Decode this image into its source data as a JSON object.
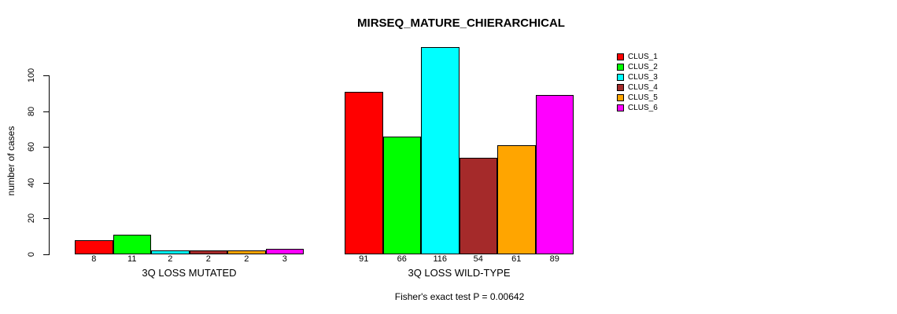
{
  "chart": {
    "title": "MIRSEQ_MATURE_CHIERARCHICAL",
    "ylabel": "number of cases",
    "caption": "Fisher's exact test P = 0.00642"
  },
  "colors": {
    "background": "#FFFFFF",
    "axis": "#000000",
    "bar_border": "#000000",
    "text": "#000000"
  },
  "chart_data": {
    "type": "bar",
    "title": "MIRSEQ_MATURE_CHIERARCHICAL",
    "xlabel": "",
    "ylabel": "number of cases",
    "ylim": [
      0,
      116
    ],
    "yticks": [
      0,
      20,
      40,
      60,
      80,
      100
    ],
    "grid": false,
    "legend_position": "top-right",
    "bar_value_labels": true,
    "categories": [
      "3Q LOSS MUTATED",
      "3Q LOSS WILD-TYPE"
    ],
    "series": [
      {
        "name": "CLUS_1",
        "color": "#FF0000",
        "values": [
          8,
          91
        ]
      },
      {
        "name": "CLUS_2",
        "color": "#00FF00",
        "values": [
          11,
          66
        ]
      },
      {
        "name": "CLUS_3",
        "color": "#00FFFF",
        "values": [
          2,
          116
        ]
      },
      {
        "name": "CLUS_4",
        "color": "#A52A2A",
        "values": [
          2,
          54
        ]
      },
      {
        "name": "CLUS_5",
        "color": "#FFA500",
        "values": [
          2,
          61
        ]
      },
      {
        "name": "CLUS_6",
        "color": "#FF00FF",
        "values": [
          3,
          89
        ]
      }
    ],
    "annotation": "Fisher's exact test P = 0.00642"
  }
}
